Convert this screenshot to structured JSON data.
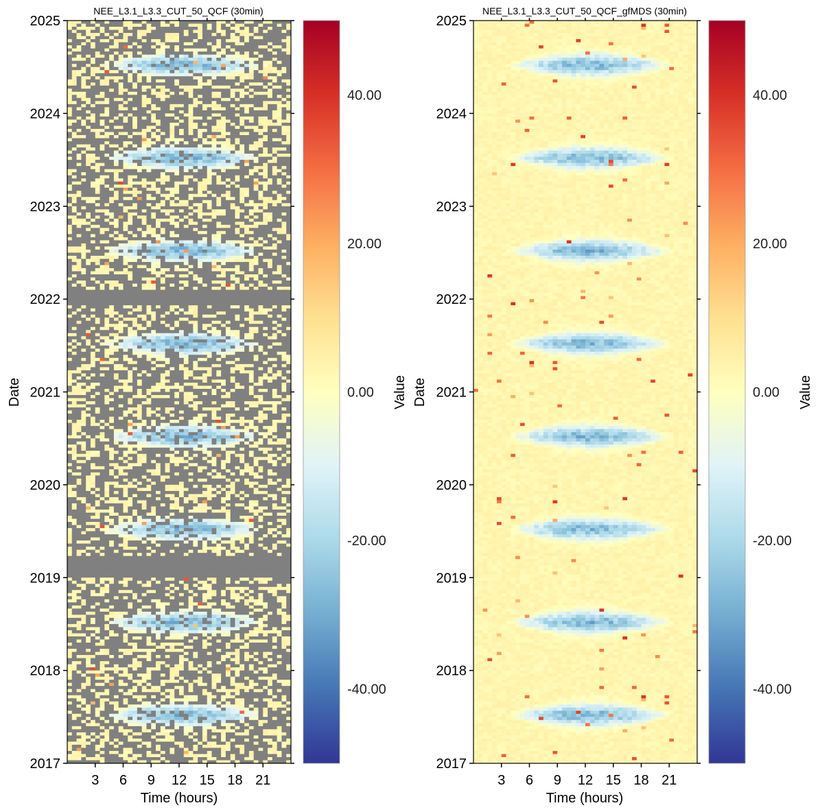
{
  "chart_data": [
    {
      "type": "heatmap",
      "title": "NEE_L3.1_L3.3_CUT_50_QCF (30min)",
      "xlabel": "Time (hours)",
      "ylabel": "Date",
      "x_ticks": [
        "3",
        "6",
        "9",
        "12",
        "15",
        "18",
        "21"
      ],
      "x_tick_values": [
        3,
        6,
        9,
        12,
        15,
        18,
        21
      ],
      "xlim": [
        0,
        24
      ],
      "y_ticks": [
        "2017",
        "2018",
        "2019",
        "2020",
        "2021",
        "2022",
        "2023",
        "2024",
        "2025"
      ],
      "ylim": [
        "2017",
        "2025"
      ],
      "colorbar_label": "Value",
      "colorbar_ticks": [
        "40.00",
        "20.00",
        "0.00",
        "-20.00",
        "-40.00"
      ],
      "colorbar_tick_values": [
        40,
        20,
        0,
        -20,
        -40
      ],
      "clim": [
        -50,
        50
      ],
      "colormap": "RdYlBu_r",
      "missing_color": "#808080",
      "gaps": [
        [
          2019.0,
          2019.22
        ],
        [
          2021.95,
          2022.1
        ]
      ],
      "daytime_uptake_peak": -30,
      "night_release": 3,
      "grid": false
    },
    {
      "type": "heatmap",
      "title": "NEE_L3.1_L3.3_CUT_50_QCF_gfMDS (30min)",
      "xlabel": "Time (hours)",
      "ylabel": "Date",
      "x_ticks": [
        "3",
        "6",
        "9",
        "12",
        "15",
        "18",
        "21"
      ],
      "x_tick_values": [
        3,
        6,
        9,
        12,
        15,
        18,
        21
      ],
      "xlim": [
        0,
        24
      ],
      "y_ticks": [
        "2017",
        "2018",
        "2019",
        "2020",
        "2021",
        "2022",
        "2023",
        "2024",
        "2025"
      ],
      "ylim": [
        "2017",
        "2025"
      ],
      "colorbar_label": "Value",
      "colorbar_ticks": [
        "40.00",
        "20.00",
        "0.00",
        "-20.00",
        "-40.00"
      ],
      "colorbar_tick_values": [
        40,
        20,
        0,
        -20,
        -40
      ],
      "clim": [
        -50,
        50
      ],
      "colormap": "RdYlBu_r",
      "missing_color": "#808080",
      "gaps": [],
      "daytime_uptake_peak": -30,
      "night_release": 3,
      "grid": false
    }
  ]
}
